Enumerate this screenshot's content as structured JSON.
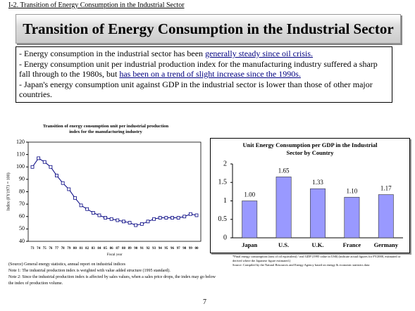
{
  "header": {
    "breadcrumb": "I-2. Transition of Energy Consumption in the Industrial Sector",
    "title": "Transition of Energy Consumption in the Industrial Sector"
  },
  "bullets": [
    [
      {
        "text": "- Energy consumption in the industrial sector has been ",
        "underlined": false
      },
      {
        "text": "generally steady since oil crisis.",
        "underlined": true
      }
    ],
    [
      {
        "text": "- Energy consumption unit per industrial production index for the manufacturing industry suffered a sharp fall through to the 1980s, but ",
        "underlined": false
      },
      {
        "text": "has been on a trend of slight increase since the 1990s.",
        "underlined": true
      }
    ],
    [
      {
        "text": "- Japan's energy consumption unit against GDP in the industrial sector is lower than those of other major countries.",
        "underlined": false
      }
    ]
  ],
  "chart_data": [
    {
      "type": "line",
      "title": "Transition of energy consumption unit per industrial production index for the manufacturing industry",
      "x_label": "Fiscal year",
      "y_label": "Index (FY1973 = 100)",
      "categories": [
        "73",
        "74",
        "75",
        "76",
        "77",
        "78",
        "79",
        "80",
        "81",
        "82",
        "83",
        "84",
        "85",
        "86",
        "87",
        "88",
        "89",
        "90",
        "91",
        "92",
        "93",
        "94",
        "95",
        "96",
        "97",
        "98",
        "99",
        "00"
      ],
      "values": [
        100,
        107,
        104,
        100,
        93,
        87,
        82,
        75,
        69,
        66,
        63,
        61,
        59,
        58,
        57,
        56,
        55,
        53,
        54,
        56,
        58,
        59,
        59,
        59,
        59,
        60,
        62,
        61
      ],
      "color": "#000080",
      "ylim": [
        40,
        120
      ],
      "yticks": [
        40,
        50,
        60,
        70,
        80,
        90,
        100,
        110,
        120
      ]
    },
    {
      "type": "bar",
      "title": "Unit Energy Consumption per GDP in the Industrial Sector by Country",
      "categories": [
        "Japan",
        "U.S.",
        "U.K.",
        "France",
        "Germany"
      ],
      "values": [
        1.0,
        1.65,
        1.33,
        1.1,
        1.17
      ],
      "value_labels": [
        "1.00",
        "1.65",
        "1.33",
        "1.10",
        "1.17"
      ],
      "color": "#9999ff",
      "ylim": [
        0,
        2
      ],
      "yticks": [
        0,
        0.5,
        1,
        1.5,
        2
      ]
    }
  ],
  "line_notes": [
    "(Source)   General energy statistics, annual report on industrial indices",
    "Note 1: The industrial production index is weighted with value added structure (1995 standard).",
    "Note 2: Since the industrial production index is affected by sales values, when a sales price drops, the index may go below the index of production volume."
  ],
  "bar_notes": [
    "*Final energy consumption (tons of oil equivalent) / real GDP (1995 value in US$) (indicate actual figures for FY2000, estimated or derived where the Japanese figure estimated.)",
    "Source:  Compiled by the Natural Resources and Energy Agency based on energy & economic statistics data"
  ],
  "page_number": "7"
}
